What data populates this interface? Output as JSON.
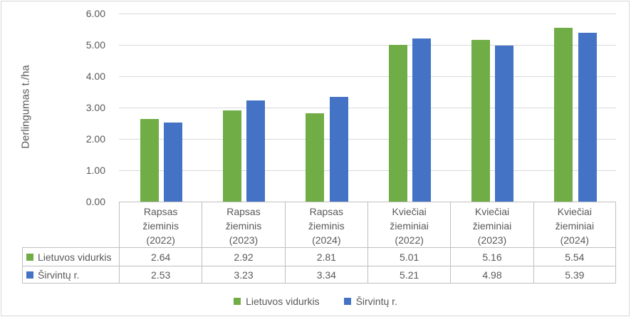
{
  "chart_data": {
    "type": "bar",
    "title": "",
    "xlabel": "",
    "ylabel": "Derlingumas t./ha",
    "ylim": [
      0,
      6
    ],
    "y_tick_step": 1,
    "y_tick_labels": [
      "0.00",
      "1.00",
      "2.00",
      "3.00",
      "4.00",
      "5.00",
      "6.00"
    ],
    "grid": true,
    "legend_position": "bottom",
    "data_table_shown": true,
    "categories": [
      "Rapsas žieminis (2022)",
      "Rapsas žieminis (2023)",
      "Rapsas žieminis (2024)",
      "Kviečiai žieminiai (2022)",
      "Kviečiai žieminiai (2023)",
      "Kviečiai žieminiai (2024)"
    ],
    "series": [
      {
        "name": "Lietuvos vidurkis",
        "color": "#70AD47",
        "values": [
          2.64,
          2.92,
          2.81,
          5.01,
          5.16,
          5.54
        ]
      },
      {
        "name": "Širvintų r.",
        "color": "#4472C4",
        "values": [
          2.53,
          3.23,
          3.34,
          5.21,
          4.98,
          5.39
        ]
      }
    ]
  },
  "colors": {
    "text": "#595959",
    "gridline": "#D9D9D9",
    "table_border": "#BFBFBF",
    "frame_border": "#D7D7D7",
    "background": "#FFFFFF",
    "series_green": "#70AD47",
    "series_blue": "#4472C4"
  }
}
